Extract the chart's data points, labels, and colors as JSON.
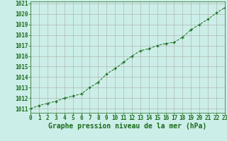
{
  "x": [
    0,
    1,
    2,
    3,
    4,
    5,
    6,
    7,
    8,
    9,
    10,
    11,
    12,
    13,
    14,
    15,
    16,
    17,
    18,
    19,
    20,
    21,
    22,
    23
  ],
  "y": [
    1011.0,
    1011.3,
    1011.5,
    1011.7,
    1012.0,
    1012.2,
    1012.4,
    1013.0,
    1013.5,
    1014.3,
    1014.8,
    1015.4,
    1016.0,
    1016.5,
    1016.7,
    1017.0,
    1017.2,
    1017.3,
    1017.8,
    1018.5,
    1019.0,
    1019.5,
    1020.1,
    1020.6
  ],
  "line_color": "#1a6b1a",
  "marker_color": "#1a6b1a",
  "bg_color": "#cceee8",
  "grid_color": "#b0b8b0",
  "xlabel": "Graphe pression niveau de la mer (hPa)",
  "xlabel_color": "#1a6b1a",
  "ylabel_ticks": [
    1011,
    1012,
    1013,
    1014,
    1015,
    1016,
    1017,
    1018,
    1019,
    1020,
    1021
  ],
  "xlim": [
    0,
    23
  ],
  "ylim": [
    1010.6,
    1021.2
  ],
  "tick_fontsize": 5.5,
  "xlabel_fontsize": 7
}
